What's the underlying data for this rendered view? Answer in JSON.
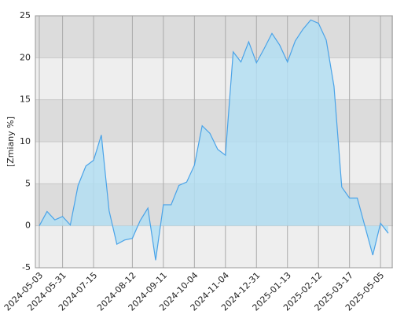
{
  "chart_data": {
    "type": "area",
    "y_label": "[Zmiany %]",
    "categories": [
      "2024-05-03",
      null,
      null,
      "2024-05-31",
      null,
      null,
      null,
      "2024-07-15",
      null,
      null,
      null,
      null,
      "2024-08-12",
      null,
      null,
      null,
      "2024-09-11",
      null,
      null,
      null,
      "2024-10-04",
      null,
      null,
      null,
      "2024-11-04",
      null,
      null,
      null,
      "2024-12-31",
      null,
      null,
      null,
      "2025-01-13",
      null,
      null,
      null,
      "2025-02-12",
      null,
      null,
      null,
      "2025-03-17",
      null,
      null,
      null,
      "2025-05-05",
      null
    ],
    "values": [
      0,
      1.7,
      0.7,
      1.1,
      0.1,
      4.8,
      7.1,
      7.8,
      10.8,
      1.8,
      -2.2,
      -1.7,
      -1.5,
      0.6,
      2.1,
      -4.1,
      2.5,
      2.5,
      4.8,
      5.2,
      7.2,
      11.9,
      11.0,
      9.1,
      8.4,
      20.7,
      19.5,
      21.9,
      19.4,
      21.1,
      22.9,
      21.5,
      19.5,
      22.0,
      23.4,
      24.5,
      24.1,
      22.1,
      16.6,
      4.6,
      3.3,
      3.3,
      -0.1,
      -3.5,
      0.3,
      -0.9
    ],
    "color": "#4aa3e8",
    "fill": "#b3def2",
    "ylim": [
      -5,
      25
    ],
    "yticks": [
      -5,
      0,
      5,
      10,
      15,
      20,
      25
    ],
    "grid": true
  }
}
